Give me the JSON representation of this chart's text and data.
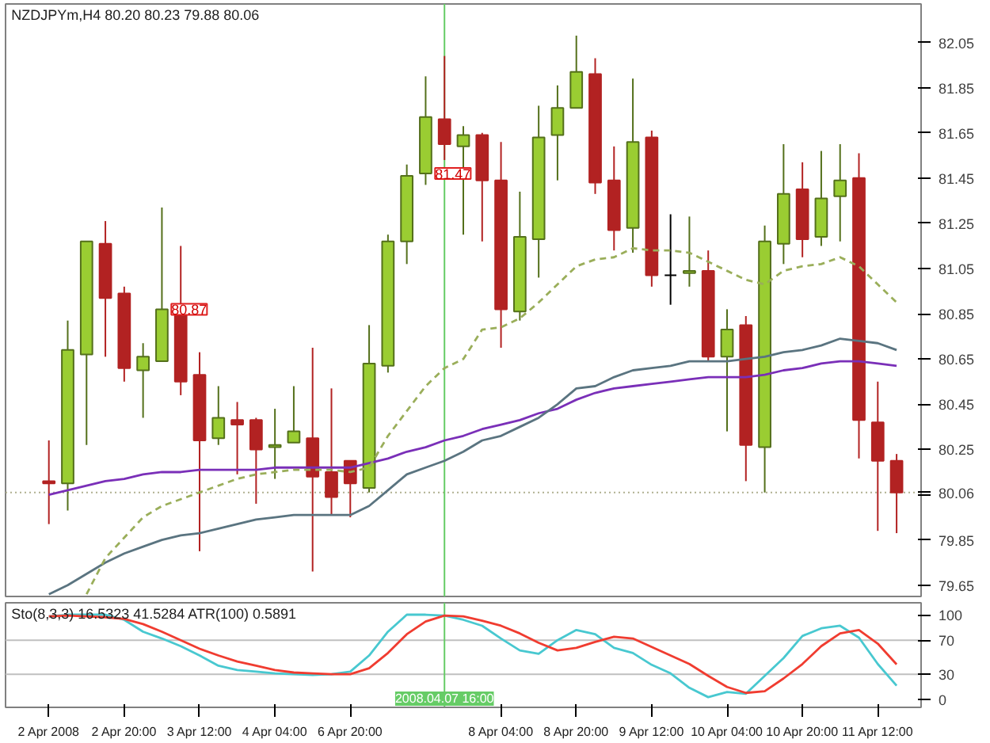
{
  "chart_data": [
    {
      "type": "candlestick",
      "title": "NZDJPYm,H4 80.20 80.23 79.88 80.06",
      "categories": [
        "2 Apr 2008",
        null,
        null,
        null,
        "2 Apr 20:00",
        null,
        null,
        null,
        "3 Apr 12:00",
        null,
        null,
        null,
        "4 Apr 04:00",
        null,
        null,
        null,
        "6 Apr 20:00",
        null,
        null,
        null,
        null,
        "2008.04.07 16:00",
        null,
        null,
        "8 Apr 04:00",
        null,
        null,
        null,
        "8 Apr 20:00",
        null,
        null,
        null,
        "9 Apr 12:00",
        null,
        null,
        null,
        "10 Apr 04:00",
        null,
        null,
        null,
        "10 Apr 20:00",
        null,
        null,
        null,
        "11 Apr 12:00",
        null
      ],
      "ohlc": [
        [
          80.11,
          80.29,
          79.92,
          80.1
        ],
        [
          80.1,
          80.82,
          79.98,
          80.69
        ],
        [
          80.67,
          81.17,
          80.27,
          81.17
        ],
        [
          81.16,
          81.26,
          80.66,
          80.92
        ],
        [
          80.94,
          80.97,
          80.55,
          80.61
        ],
        [
          80.6,
          80.72,
          80.39,
          80.66
        ],
        [
          80.64,
          81.32,
          80.64,
          80.87
        ],
        [
          80.86,
          81.15,
          80.49,
          80.55
        ],
        [
          80.58,
          80.68,
          79.8,
          80.29
        ],
        [
          80.3,
          80.53,
          80.27,
          80.39
        ],
        [
          80.38,
          80.46,
          80.14,
          80.36
        ],
        [
          80.38,
          80.39,
          80.01,
          80.25
        ],
        [
          80.26,
          80.43,
          80.12,
          80.27
        ],
        [
          80.28,
          80.53,
          80.28,
          80.33
        ],
        [
          80.3,
          80.7,
          79.71,
          80.13
        ],
        [
          80.15,
          80.52,
          79.96,
          80.04
        ],
        [
          80.2,
          80.2,
          79.95,
          80.1
        ],
        [
          80.08,
          80.8,
          80.06,
          80.63
        ],
        [
          80.62,
          81.2,
          80.59,
          81.17
        ],
        [
          81.17,
          81.51,
          81.07,
          81.46
        ],
        [
          81.47,
          81.9,
          81.42,
          81.72
        ],
        [
          81.71,
          81.99,
          81.53,
          81.6
        ],
        [
          81.59,
          81.68,
          81.2,
          81.64
        ],
        [
          81.64,
          81.65,
          81.17,
          81.44
        ],
        [
          81.44,
          81.61,
          80.7,
          80.87
        ],
        [
          80.86,
          81.39,
          80.82,
          81.19
        ],
        [
          81.18,
          81.77,
          81.01,
          81.63
        ],
        [
          81.64,
          81.86,
          81.44,
          81.76
        ],
        [
          81.76,
          82.08,
          81.76,
          81.92
        ],
        [
          81.91,
          81.98,
          81.38,
          81.43
        ],
        [
          81.44,
          81.59,
          81.13,
          81.22
        ],
        [
          81.23,
          81.89,
          81.12,
          81.61
        ],
        [
          81.63,
          81.66,
          80.97,
          81.02
        ],
        [
          81.02,
          81.29,
          80.89,
          81.02
        ],
        [
          81.03,
          81.28,
          80.97,
          81.04
        ],
        [
          81.04,
          81.13,
          80.64,
          80.66
        ],
        [
          80.66,
          80.87,
          80.33,
          80.78
        ],
        [
          80.8,
          80.84,
          80.11,
          80.27
        ],
        [
          80.26,
          81.24,
          80.06,
          81.17
        ],
        [
          81.16,
          81.6,
          81.07,
          81.38
        ],
        [
          81.4,
          81.52,
          81.1,
          81.18
        ],
        [
          81.19,
          81.57,
          81.15,
          81.36
        ],
        [
          81.37,
          81.6,
          81.17,
          81.44
        ],
        [
          81.45,
          81.56,
          80.21,
          80.38
        ],
        [
          80.37,
          80.55,
          79.89,
          80.2
        ],
        [
          80.2,
          80.23,
          79.88,
          80.06
        ]
      ],
      "colors": [
        "#b22222",
        "#9acd32",
        "#9acd32",
        "#b22222",
        "#b22222",
        "#9acd32",
        "#9acd32",
        "#b22222",
        "#b22222",
        "#9acd32",
        "#b22222",
        "#b22222",
        "#9acd32",
        "#9acd32",
        "#b22222",
        "#b22222",
        "#b22222",
        "#9acd32",
        "#9acd32",
        "#9acd32",
        "#9acd32",
        "#b22222",
        "#9acd32",
        "#b22222",
        "#b22222",
        "#9acd32",
        "#9acd32",
        "#9acd32",
        "#9acd32",
        "#b22222",
        "#b22222",
        "#9acd32",
        "#b22222",
        "#000000",
        "#9acd32",
        "#b22222",
        "#9acd32",
        "#b22222",
        "#9acd32",
        "#9acd32",
        "#b22222",
        "#9acd32",
        "#9acd32",
        "#b22222",
        "#b22222",
        "#b22222"
      ],
      "series": [
        {
          "type": "line",
          "color": "#7a2fb8",
          "values": [
            80.05,
            80.07,
            80.09,
            80.11,
            80.12,
            80.14,
            80.15,
            80.15,
            80.16,
            80.16,
            80.16,
            80.16,
            80.17,
            80.17,
            80.17,
            80.17,
            80.17,
            80.19,
            80.21,
            80.24,
            80.26,
            80.29,
            80.31,
            80.34,
            80.36,
            80.38,
            80.41,
            80.43,
            80.47,
            80.5,
            80.52,
            80.53,
            80.54,
            80.55,
            80.56,
            80.57,
            80.57,
            80.57,
            80.58,
            80.6,
            80.61,
            80.63,
            80.64,
            80.64,
            80.63,
            80.62
          ]
        },
        {
          "type": "line",
          "color": "#5a7480",
          "values": [
            79.61,
            79.65,
            79.7,
            79.75,
            79.79,
            79.82,
            79.85,
            79.87,
            79.88,
            79.9,
            79.92,
            79.94,
            79.95,
            79.96,
            79.96,
            79.96,
            79.96,
            80.0,
            80.07,
            80.14,
            80.17,
            80.2,
            80.24,
            80.29,
            80.31,
            80.35,
            80.39,
            80.45,
            80.52,
            80.53,
            80.57,
            80.6,
            80.61,
            80.62,
            80.64,
            80.64,
            80.64,
            80.65,
            80.66,
            80.68,
            80.69,
            80.71,
            80.74,
            80.73,
            80.72,
            80.69
          ]
        },
        {
          "type": "line",
          "color": "#9aae5a",
          "line_style": "dashed",
          "values": [
            null,
            null,
            79.61,
            79.77,
            79.86,
            79.95,
            80.0,
            80.03,
            80.06,
            80.09,
            80.12,
            80.14,
            80.15,
            80.16,
            80.16,
            80.16,
            80.15,
            80.17,
            80.31,
            80.42,
            80.53,
            80.61,
            80.65,
            80.78,
            80.79,
            80.83,
            80.9,
            80.98,
            81.06,
            81.09,
            81.1,
            81.14,
            81.13,
            81.13,
            81.12,
            81.08,
            81.04,
            81.0,
            80.98,
            81.04,
            81.06,
            81.07,
            81.1,
            81.06,
            80.98,
            80.9
          ]
        }
      ],
      "ylim": [
        79.6,
        82.22
      ],
      "yticks": [
        82.05,
        81.85,
        81.65,
        81.45,
        81.25,
        81.05,
        80.85,
        80.65,
        80.45,
        80.25,
        {
          "value": 80.05,
          "label": null
        },
        79.85,
        79.65
      ],
      "ref_lines": [
        {
          "axis": "y",
          "value": 80.06,
          "label": "80.06",
          "color": "#b0b090",
          "line_style": "dotted"
        },
        {
          "axis": "x",
          "value": "2008.04.07 16:00",
          "color": "#66cc66"
        }
      ],
      "annotations": [
        {
          "text": "81.47",
          "y": 81.47
        },
        {
          "text": "80.87",
          "y": 80.87
        }
      ],
      "tick_labels": "y",
      "grid": false
    },
    {
      "type": "line",
      "title": "Sto(8,3,3) 16.5323 41.5284 ATR(100) 0.5891",
      "categories": [
        "2 Apr 2008",
        null,
        null,
        null,
        "2 Apr 20:00",
        null,
        null,
        null,
        "3 Apr 12:00",
        null,
        null,
        null,
        "4 Apr 04:00",
        null,
        null,
        null,
        "6 Apr 20:00",
        null,
        null,
        null,
        null,
        "2008.04.07 16:00",
        null,
        null,
        "8 Apr 04:00",
        null,
        null,
        null,
        "8 Apr 20:00",
        null,
        null,
        null,
        "9 Apr 12:00",
        null,
        null,
        null,
        "10 Apr 04:00",
        null,
        null,
        null,
        "10 Apr 20:00",
        null,
        null,
        null,
        "11 Apr 12:00",
        null
      ],
      "series": [
        {
          "color": "#48c8d0",
          "values": [
            98,
            100,
            100,
            100,
            94,
            80,
            72,
            63,
            52,
            40,
            35,
            33,
            31,
            30,
            29,
            30,
            33,
            52,
            80,
            100,
            100,
            99,
            94,
            87,
            72,
            58,
            54,
            70,
            82,
            77,
            61,
            55,
            41,
            31,
            14,
            3,
            9,
            7,
            28,
            49,
            75,
            84,
            87,
            73,
            42,
            16.5
          ]
        },
        {
          "color": "#f03c30",
          "values": [
            98,
            99,
            98,
            97,
            95,
            89,
            80,
            70,
            60,
            52,
            45,
            40,
            35,
            32,
            31,
            30,
            30,
            37,
            55,
            77,
            92,
            99,
            98,
            93,
            87,
            78,
            67,
            58,
            61,
            68,
            74,
            72,
            62,
            52,
            42,
            28,
            15,
            8,
            10,
            25,
            42,
            63,
            78,
            82,
            66,
            41.5
          ]
        }
      ],
      "ylim": [
        -9,
        114
      ],
      "yticks": [
        0,
        30,
        70,
        100
      ],
      "ref_lines": [
        {
          "axis": "y",
          "value": 30,
          "color": "#c0c0c0"
        },
        {
          "axis": "y",
          "value": 70,
          "color": "#c0c0c0"
        },
        {
          "axis": "x",
          "value": "2008.04.07 16:00",
          "color": "#66cc66"
        }
      ],
      "grid": false
    }
  ]
}
